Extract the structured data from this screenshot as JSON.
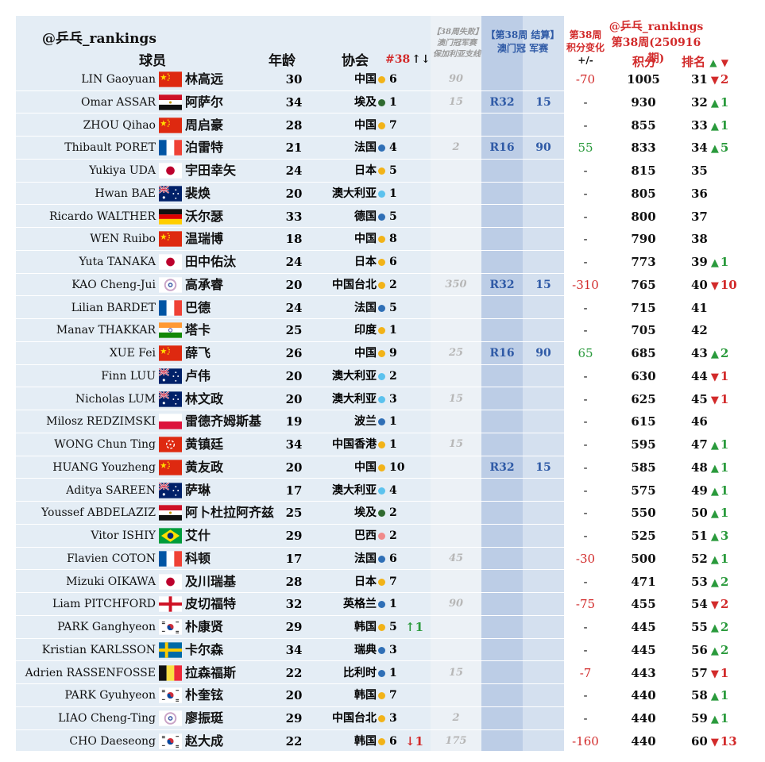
{
  "header": {
    "handle": "@乒乓_rankings",
    "col_player": "球员",
    "col_age": "年龄",
    "col_assoc": "协会",
    "col_week_rank": "#38",
    "col_week_rank_arrows": "↑↓",
    "col_fail_l1": "【38周失败】",
    "col_fail_l2": "澳门冠军赛",
    "col_fail_l3": "保加利亚支线",
    "col_result_l1": "【第38周 结算】",
    "col_result_round": "澳门冠",
    "col_result_pts": "军赛",
    "col_change_l1": "第38周",
    "col_change_l2": "积分变化",
    "col_change_l3": "+/-",
    "right_handle": "@乒乓_rankings",
    "right_period": "第38周(250916期)",
    "col_score": "积分",
    "col_rank": "排名",
    "col_rank_arrows_up": "▲",
    "col_rank_arrows_down": "▼"
  },
  "colors": {
    "china_dot": "#f2b318",
    "blue_dot": "#2f6fb6",
    "green_dot": "#2f6a2f",
    "light_blue_dot": "#5bc2ee",
    "red_text": "#d22a2a",
    "green_text": "#2a9a3c",
    "blue_text": "#2f5aa6"
  },
  "rows": [
    {
      "en": "LIN Gaoyuan",
      "flag": "cn",
      "zh": "林高远",
      "age": "30",
      "assoc": "中国",
      "dot": "yellow",
      "wk": "6",
      "wkchg": "",
      "fail": "90",
      "round": "",
      "pts": "",
      "chg": "-70",
      "chg_color": "red",
      "score": "1005",
      "rank": "31",
      "arrow": "▼",
      "rmove": "2",
      "dir": "down"
    },
    {
      "en": "Omar ASSAR",
      "flag": "eg",
      "zh": "阿萨尔",
      "age": "34",
      "assoc": "埃及",
      "dot": "green",
      "wk": "1",
      "wkchg": "",
      "fail": "15",
      "round": "R32",
      "pts": "15",
      "chg": "-",
      "chg_color": "black",
      "score": "930",
      "rank": "32",
      "arrow": "▲",
      "rmove": "1",
      "dir": "up"
    },
    {
      "en": "ZHOU Qihao",
      "flag": "cn",
      "zh": "周启豪",
      "age": "28",
      "assoc": "中国",
      "dot": "yellow",
      "wk": "7",
      "wkchg": "",
      "fail": "",
      "round": "",
      "pts": "",
      "chg": "-",
      "chg_color": "black",
      "score": "855",
      "rank": "33",
      "arrow": "▲",
      "rmove": "1",
      "dir": "up"
    },
    {
      "en": "Thibault PORET",
      "flag": "fr",
      "zh": "泊雷特",
      "age": "21",
      "assoc": "法国",
      "dot": "blue",
      "wk": "4",
      "wkchg": "",
      "fail": "2",
      "round": "R16",
      "pts": "90",
      "chg": "55",
      "chg_color": "green",
      "score": "833",
      "rank": "34",
      "arrow": "▲",
      "rmove": "5",
      "dir": "up"
    },
    {
      "en": "Yukiya UDA",
      "flag": "jp",
      "zh": "宇田幸矢",
      "age": "24",
      "assoc": "日本",
      "dot": "yellow",
      "wk": "5",
      "wkchg": "",
      "fail": "",
      "round": "",
      "pts": "",
      "chg": "-",
      "chg_color": "black",
      "score": "815",
      "rank": "35",
      "arrow": "",
      "rmove": "",
      "dir": ""
    },
    {
      "en": "Hwan BAE",
      "flag": "au",
      "zh": "裴焕",
      "age": "20",
      "assoc": "澳大利亚",
      "dot": "lightblue",
      "wk": "1",
      "wkchg": "",
      "fail": "",
      "round": "",
      "pts": "",
      "chg": "-",
      "chg_color": "black",
      "score": "805",
      "rank": "36",
      "arrow": "",
      "rmove": "",
      "dir": ""
    },
    {
      "en": "Ricardo WALTHER",
      "flag": "de",
      "zh": "沃尔瑟",
      "age": "33",
      "assoc": "德国",
      "dot": "blue",
      "wk": "5",
      "wkchg": "",
      "fail": "",
      "round": "",
      "pts": "",
      "chg": "-",
      "chg_color": "black",
      "score": "800",
      "rank": "37",
      "arrow": "",
      "rmove": "",
      "dir": ""
    },
    {
      "en": "WEN Ruibo",
      "flag": "cn",
      "zh": "温瑞博",
      "age": "18",
      "assoc": "中国",
      "dot": "yellow",
      "wk": "8",
      "wkchg": "",
      "fail": "",
      "round": "",
      "pts": "",
      "chg": "-",
      "chg_color": "black",
      "score": "790",
      "rank": "38",
      "arrow": "",
      "rmove": "",
      "dir": ""
    },
    {
      "en": "Yuta TANAKA",
      "flag": "jp",
      "zh": "田中佑汰",
      "age": "24",
      "assoc": "日本",
      "dot": "yellow",
      "wk": "6",
      "wkchg": "",
      "fail": "",
      "round": "",
      "pts": "",
      "chg": "-",
      "chg_color": "black",
      "score": "773",
      "rank": "39",
      "arrow": "▲",
      "rmove": "1",
      "dir": "up"
    },
    {
      "en": "KAO Cheng-Jui",
      "flag": "tpe",
      "zh": "高承睿",
      "age": "20",
      "assoc": "中国台北",
      "dot": "yellow",
      "wk": "2",
      "wkchg": "",
      "fail": "350",
      "round": "R32",
      "pts": "15",
      "chg": "-310",
      "chg_color": "red",
      "score": "765",
      "rank": "40",
      "arrow": "▼",
      "rmove": "10",
      "dir": "down"
    },
    {
      "en": "Lilian BARDET",
      "flag": "fr",
      "zh": "巴德",
      "age": "24",
      "assoc": "法国",
      "dot": "blue",
      "wk": "5",
      "wkchg": "",
      "fail": "",
      "round": "",
      "pts": "",
      "chg": "-",
      "chg_color": "black",
      "score": "715",
      "rank": "41",
      "arrow": "",
      "rmove": "",
      "dir": ""
    },
    {
      "en": "Manav THAKKAR",
      "flag": "in",
      "zh": "塔卡",
      "age": "25",
      "assoc": "印度",
      "dot": "yellow",
      "wk": "1",
      "wkchg": "",
      "fail": "",
      "round": "",
      "pts": "",
      "chg": "-",
      "chg_color": "black",
      "score": "705",
      "rank": "42",
      "arrow": "",
      "rmove": "",
      "dir": ""
    },
    {
      "en": "XUE Fei",
      "flag": "cn",
      "zh": "薛飞",
      "age": "26",
      "assoc": "中国",
      "dot": "yellow",
      "wk": "9",
      "wkchg": "",
      "fail": "25",
      "round": "R16",
      "pts": "90",
      "chg": "65",
      "chg_color": "green",
      "score": "685",
      "rank": "43",
      "arrow": "▲",
      "rmove": "2",
      "dir": "up"
    },
    {
      "en": "Finn LUU",
      "flag": "au",
      "zh": "卢伟",
      "age": "20",
      "assoc": "澳大利亚",
      "dot": "lightblue",
      "wk": "2",
      "wkchg": "",
      "fail": "",
      "round": "",
      "pts": "",
      "chg": "-",
      "chg_color": "black",
      "score": "630",
      "rank": "44",
      "arrow": "▼",
      "rmove": "1",
      "dir": "down"
    },
    {
      "en": "Nicholas LUM",
      "flag": "au",
      "zh": "林文政",
      "age": "20",
      "assoc": "澳大利亚",
      "dot": "lightblue",
      "wk": "3",
      "wkchg": "",
      "fail": "15",
      "round": "",
      "pts": "",
      "chg": "-",
      "chg_color": "black",
      "score": "625",
      "rank": "45",
      "arrow": "▼",
      "rmove": "1",
      "dir": "down"
    },
    {
      "en": "Milosz REDZIMSKI",
      "flag": "pl",
      "zh": "雷德齐姆斯基",
      "age": "19",
      "assoc": "波兰",
      "dot": "blue",
      "wk": "1",
      "wkchg": "",
      "fail": "",
      "round": "",
      "pts": "",
      "chg": "-",
      "chg_color": "black",
      "score": "615",
      "rank": "46",
      "arrow": "",
      "rmove": "",
      "dir": ""
    },
    {
      "en": "WONG Chun Ting",
      "flag": "hk",
      "zh": "黄镇廷",
      "age": "34",
      "assoc": "中国香港",
      "dot": "yellow",
      "wk": "1",
      "wkchg": "",
      "fail": "15",
      "round": "",
      "pts": "",
      "chg": "-",
      "chg_color": "black",
      "score": "595",
      "rank": "47",
      "arrow": "▲",
      "rmove": "1",
      "dir": "up"
    },
    {
      "en": "HUANG Youzheng",
      "flag": "cn",
      "zh": "黄友政",
      "age": "20",
      "assoc": "中国",
      "dot": "yellow",
      "wk": "10",
      "wkchg": "",
      "fail": "",
      "round": "R32",
      "pts": "15",
      "chg": "-",
      "chg_color": "black",
      "score": "585",
      "rank": "48",
      "arrow": "▲",
      "rmove": "1",
      "dir": "up"
    },
    {
      "en": "Aditya SAREEN",
      "flag": "au",
      "zh": "萨琳",
      "age": "17",
      "assoc": "澳大利亚",
      "dot": "lightblue",
      "wk": "4",
      "wkchg": "",
      "fail": "",
      "round": "",
      "pts": "",
      "chg": "-",
      "chg_color": "black",
      "score": "575",
      "rank": "49",
      "arrow": "▲",
      "rmove": "1",
      "dir": "up"
    },
    {
      "en": "Youssef ABDELAZIZ",
      "flag": "eg",
      "zh": "阿卜杜拉阿齐兹",
      "age": "25",
      "assoc": "埃及",
      "dot": "green",
      "wk": "2",
      "wkchg": "",
      "fail": "",
      "round": "",
      "pts": "",
      "chg": "-",
      "chg_color": "black",
      "score": "550",
      "rank": "50",
      "arrow": "▲",
      "rmove": "1",
      "dir": "up"
    },
    {
      "en": "Vitor ISHIY",
      "flag": "br",
      "zh": "艾什",
      "age": "29",
      "assoc": "巴西",
      "dot": "pink",
      "wk": "2",
      "wkchg": "",
      "fail": "",
      "round": "",
      "pts": "",
      "chg": "-",
      "chg_color": "black",
      "score": "525",
      "rank": "51",
      "arrow": "▲",
      "rmove": "3",
      "dir": "up"
    },
    {
      "en": "Flavien COTON",
      "flag": "fr",
      "zh": "科顿",
      "age": "17",
      "assoc": "法国",
      "dot": "blue",
      "wk": "6",
      "wkchg": "",
      "fail": "45",
      "round": "",
      "pts": "",
      "chg": "-30",
      "chg_color": "red",
      "score": "500",
      "rank": "52",
      "arrow": "▲",
      "rmove": "1",
      "dir": "up"
    },
    {
      "en": "Mizuki OIKAWA",
      "flag": "jp",
      "zh": "及川瑞基",
      "age": "28",
      "assoc": "日本",
      "dot": "yellow",
      "wk": "7",
      "wkchg": "",
      "fail": "",
      "round": "",
      "pts": "",
      "chg": "-",
      "chg_color": "black",
      "score": "471",
      "rank": "53",
      "arrow": "▲",
      "rmove": "2",
      "dir": "up"
    },
    {
      "en": "Liam PITCHFORD",
      "flag": "eng",
      "zh": "皮切福特",
      "age": "32",
      "assoc": "英格兰",
      "dot": "blue",
      "wk": "1",
      "wkchg": "",
      "fail": "90",
      "round": "",
      "pts": "",
      "chg": "-75",
      "chg_color": "red",
      "score": "455",
      "rank": "54",
      "arrow": "▼",
      "rmove": "2",
      "dir": "down"
    },
    {
      "en": "PARK Ganghyeon",
      "flag": "kr",
      "zh": "朴康贤",
      "age": "29",
      "assoc": "韩国",
      "dot": "yellow",
      "wk": "5",
      "wkchg": "↑1",
      "wkchg_dir": "up",
      "fail": "",
      "round": "",
      "pts": "",
      "chg": "-",
      "chg_color": "black",
      "score": "445",
      "rank": "55",
      "arrow": "▲",
      "rmove": "2",
      "dir": "up"
    },
    {
      "en": "Kristian KARLSSON",
      "flag": "se",
      "zh": "卡尔森",
      "age": "34",
      "assoc": "瑞典",
      "dot": "blue",
      "wk": "3",
      "wkchg": "",
      "fail": "",
      "round": "",
      "pts": "",
      "chg": "-",
      "chg_color": "black",
      "score": "445",
      "rank": "56",
      "arrow": "▲",
      "rmove": "2",
      "dir": "up"
    },
    {
      "en": "Adrien RASSENFOSSE",
      "flag": "be",
      "zh": "拉森福斯",
      "age": "22",
      "assoc": "比利时",
      "dot": "blue",
      "wk": "1",
      "wkchg": "",
      "fail": "15",
      "round": "",
      "pts": "",
      "chg": "-7",
      "chg_color": "red",
      "score": "443",
      "rank": "57",
      "arrow": "▼",
      "rmove": "1",
      "dir": "down"
    },
    {
      "en": "PARK Gyuhyeon",
      "flag": "kr",
      "zh": "朴奎铉",
      "age": "20",
      "assoc": "韩国",
      "dot": "yellow",
      "wk": "7",
      "wkchg": "",
      "fail": "",
      "round": "",
      "pts": "",
      "chg": "-",
      "chg_color": "black",
      "score": "440",
      "rank": "58",
      "arrow": "▲",
      "rmove": "1",
      "dir": "up"
    },
    {
      "en": "LIAO Cheng-Ting",
      "flag": "tpe",
      "zh": "廖振珽",
      "age": "29",
      "assoc": "中国台北",
      "dot": "yellow",
      "wk": "3",
      "wkchg": "",
      "fail": "2",
      "round": "",
      "pts": "",
      "chg": "-",
      "chg_color": "black",
      "score": "440",
      "rank": "59",
      "arrow": "▲",
      "rmove": "1",
      "dir": "up"
    },
    {
      "en": "CHO Daeseong",
      "flag": "kr",
      "zh": "赵大成",
      "age": "22",
      "assoc": "韩国",
      "dot": "yellow",
      "wk": "6",
      "wkchg": "↓1",
      "wkchg_dir": "down",
      "fail": "175",
      "round": "",
      "pts": "",
      "chg": "-160",
      "chg_color": "red",
      "score": "440",
      "rank": "60",
      "arrow": "▼",
      "rmove": "13",
      "dir": "down"
    }
  ]
}
